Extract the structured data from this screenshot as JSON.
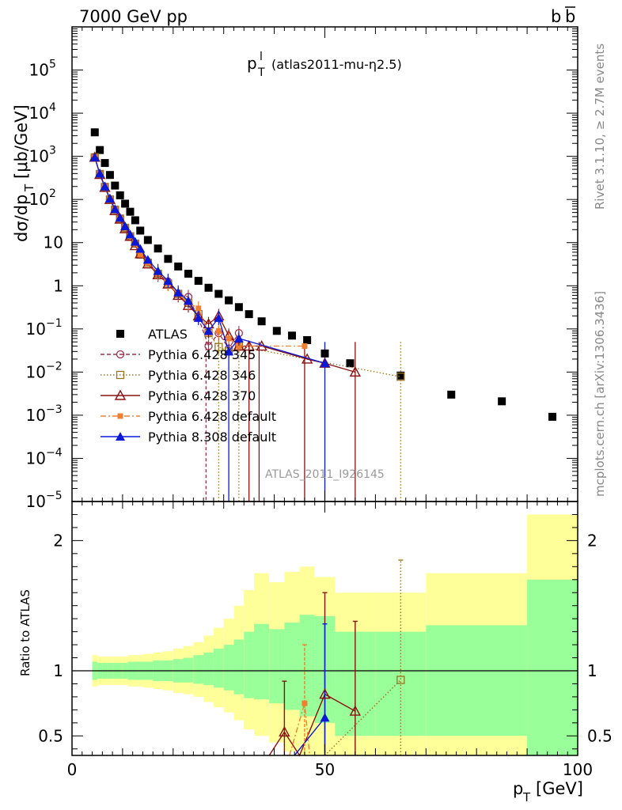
{
  "header": {
    "left": "7000 GeV pp",
    "right": "b",
    "right_bar": "b"
  },
  "plot_title": {
    "main": "p",
    "sup": "l",
    "sub": "T",
    "rest": "(atlas2011-mu-η2.5)"
  },
  "side_labels": {
    "rivet": "Rivet 3.1.10, ≥ 2.7M events",
    "mcplots": "mcplots.cern.ch [arXiv:1306.3436]"
  },
  "analysis_id": "ATLAS_2011_I926145",
  "axes": {
    "ylabel_top": "dσ/dp_T [μb/GeV]",
    "ylabel_bottom": "Ratio to ATLAS",
    "xlabel": "p_T [GeV]"
  },
  "colors": {
    "atlas": "#000000",
    "py345": "#a0304a",
    "py346": "#9b7320",
    "py370": "#8b1010",
    "pydef": "#f08030",
    "py8": "#0b18d8",
    "band_inner": "#99ff99",
    "band_outer": "#ffff99"
  },
  "chart_data": [
    {
      "type": "scatter",
      "title": "p_T^l (atlas2011-mu-η2.5)",
      "xlabel": "p_T [GeV]",
      "ylabel": "dσ/dp_T [μb/GeV]",
      "xlim": [
        0,
        100
      ],
      "ylim": [
        1e-05,
        1000000.0
      ],
      "yscale": "log",
      "xticks": [
        "0",
        "50",
        "100"
      ],
      "yticks": [
        "10^-5",
        "10^-4",
        "10^-3",
        "10^-2",
        "10^-1",
        "1",
        "10",
        "10^2",
        "10^3",
        "10^4",
        "10^5"
      ],
      "legend_position": "middle-left",
      "series": [
        {
          "name": "ATLAS",
          "marker": "filled-square",
          "color": "#000000",
          "x": [
            4.5,
            5.5,
            6.5,
            7.5,
            8.5,
            9.5,
            10.5,
            11.5,
            12.5,
            13.5,
            15,
            17,
            19,
            21,
            23,
            25,
            27,
            29,
            31,
            33,
            35,
            37.5,
            40.5,
            43.5,
            46.5,
            50,
            55,
            65,
            75,
            85,
            95
          ],
          "y": [
            3600,
            1400,
            700,
            370,
            210,
            125,
            80,
            52,
            33,
            19,
            11.5,
            7.3,
            4.2,
            2.8,
            1.9,
            1.3,
            0.9,
            0.65,
            0.46,
            0.32,
            0.22,
            0.15,
            0.09,
            0.07,
            0.055,
            0.027,
            0.016,
            0.0083,
            0.003,
            0.0021,
            0.00092
          ]
        },
        {
          "name": "Pythia 6.428 345",
          "marker": "open-circle",
          "color": "#a0304a",
          "x": [
            4.5,
            5.5,
            6.5,
            7.5,
            8.5,
            9.5,
            10.5,
            11.5,
            12.5,
            13.5,
            15,
            17,
            19,
            21,
            23,
            25,
            27,
            29,
            31,
            33
          ],
          "y": [
            950,
            390,
            195,
            100,
            58,
            36,
            22,
            14,
            9.5,
            5.3,
            3.6,
            1.9,
            1.25,
            0.65,
            0.55,
            0.18,
            0.04,
            0.08,
            0.035,
            0.08
          ]
        },
        {
          "name": "Pythia 6.428 346",
          "marker": "open-square",
          "color": "#9b7320",
          "x": [
            4.5,
            5.5,
            6.5,
            7.5,
            8.5,
            9.5,
            10.5,
            11.5,
            12.5,
            13.5,
            15,
            17,
            19,
            21,
            23,
            25,
            27,
            29,
            31,
            33,
            65
          ],
          "y": [
            950,
            390,
            195,
            100,
            58,
            36,
            22,
            14,
            9.5,
            5.3,
            3.4,
            1.9,
            1.1,
            0.65,
            0.4,
            0.22,
            0.08,
            0.038,
            0.03,
            0.04,
            0.0078
          ]
        },
        {
          "name": "Pythia 6.428 370",
          "marker": "open-triangle",
          "color": "#8b1010",
          "x": [
            4.5,
            5.5,
            6.5,
            7.5,
            8.5,
            9.5,
            10.5,
            11.5,
            12.5,
            13.5,
            15,
            17,
            19,
            21,
            23,
            25,
            27,
            29,
            31,
            33,
            35,
            37.5,
            46.5,
            50,
            56
          ],
          "y": [
            950,
            380,
            190,
            100,
            55,
            35,
            21,
            14,
            8.5,
            5.5,
            3.2,
            1.8,
            1.1,
            0.6,
            0.35,
            0.2,
            0.13,
            0.2,
            0.07,
            0.04,
            0.04,
            0.04,
            0.02,
            0.016,
            0.01
          ]
        },
        {
          "name": "Pythia 6.428 default",
          "marker": "filled-square-small",
          "color": "#f08030",
          "x": [
            4.5,
            5.5,
            6.5,
            7.5,
            8.5,
            9.5,
            10.5,
            11.5,
            12.5,
            13.5,
            15,
            17,
            19,
            21,
            23,
            25,
            27,
            29,
            31,
            33,
            46
          ],
          "y": [
            950,
            390,
            195,
            100,
            58,
            36,
            22,
            14,
            9.5,
            5.3,
            3.4,
            1.9,
            1.1,
            0.65,
            0.4,
            0.3,
            0.08,
            0.09,
            0.06,
            0.04,
            0.04
          ]
        },
        {
          "name": "Pythia 8.308 default",
          "marker": "filled-triangle",
          "color": "#0b18d8",
          "x": [
            4.5,
            5.5,
            6.5,
            7.5,
            8.5,
            9.5,
            10.5,
            11.5,
            12.5,
            13.5,
            15,
            17,
            19,
            21,
            23,
            25,
            27,
            29,
            31,
            33,
            50
          ],
          "y": [
            950,
            400,
            200,
            105,
            60,
            38,
            24,
            15.5,
            10.5,
            7.2,
            4,
            2.2,
            1.3,
            0.7,
            0.45,
            0.18,
            0.09,
            0.18,
            0.03,
            0.06,
            0.016
          ]
        }
      ]
    },
    {
      "type": "line",
      "ylabel": "Ratio to ATLAS",
      "xlabel": "p_T [GeV]",
      "xlim": [
        0,
        100
      ],
      "ylim": [
        0.35,
        2.3
      ],
      "xticks": [
        "0",
        "50",
        "100"
      ],
      "yticks": [
        "0.5",
        "1",
        "2"
      ],
      "bands": {
        "edges": [
          4,
          5,
          6,
          7,
          8,
          9,
          10,
          11,
          12,
          13,
          14,
          16,
          18,
          20,
          22,
          24,
          26,
          28,
          30,
          32,
          34,
          36,
          39,
          42,
          45,
          48,
          52,
          60,
          70,
          90,
          100
        ],
        "inner_lo": [
          0.93,
          0.94,
          0.94,
          0.94,
          0.94,
          0.94,
          0.94,
          0.93,
          0.93,
          0.93,
          0.93,
          0.92,
          0.92,
          0.91,
          0.91,
          0.9,
          0.89,
          0.87,
          0.85,
          0.82,
          0.79,
          0.78,
          0.75,
          0.7,
          0.65,
          0.6,
          0.5,
          0.5,
          0.5,
          0.35
        ],
        "inner_hi": [
          1.07,
          1.06,
          1.06,
          1.06,
          1.06,
          1.06,
          1.06,
          1.07,
          1.07,
          1.07,
          1.07,
          1.08,
          1.08,
          1.09,
          1.1,
          1.12,
          1.14,
          1.17,
          1.2,
          1.24,
          1.3,
          1.36,
          1.32,
          1.37,
          1.43,
          1.42,
          1.3,
          1.3,
          1.35,
          1.7
        ],
        "outer_lo": [
          0.88,
          0.89,
          0.89,
          0.89,
          0.89,
          0.89,
          0.89,
          0.88,
          0.88,
          0.88,
          0.87,
          0.86,
          0.85,
          0.83,
          0.82,
          0.8,
          0.76,
          0.72,
          0.68,
          0.62,
          0.55,
          0.5,
          0.45,
          0.38,
          0.32,
          0.3,
          0.3,
          0.3,
          0.3,
          0.3
        ],
        "outer_hi": [
          1.12,
          1.11,
          1.11,
          1.11,
          1.11,
          1.11,
          1.11,
          1.12,
          1.12,
          1.12,
          1.13,
          1.14,
          1.15,
          1.17,
          1.19,
          1.22,
          1.27,
          1.33,
          1.4,
          1.5,
          1.62,
          1.75,
          1.68,
          1.76,
          1.8,
          1.72,
          1.6,
          1.6,
          1.75,
          2.2
        ]
      },
      "series": [
        {
          "name": "Pythia 6.428 370",
          "color": "#8b1010",
          "x": [
            39,
            42,
            45,
            50,
            56
          ],
          "y": [
            0.35,
            0.53,
            0.35,
            0.82,
            0.69
          ]
        },
        {
          "name": "Pythia 6.428 346",
          "color": "#9b7320",
          "x": [
            50,
            65
          ],
          "y": [
            0.35,
            0.93
          ]
        },
        {
          "name": "Pythia 6.428 default",
          "color": "#f08030",
          "x": [
            43,
            46,
            47
          ],
          "y": [
            0.35,
            0.75,
            0.35
          ]
        },
        {
          "name": "Pythia 8.308 default",
          "color": "#0b18d8",
          "x": [
            44,
            50
          ],
          "y": [
            0.35,
            0.64
          ]
        }
      ]
    }
  ]
}
